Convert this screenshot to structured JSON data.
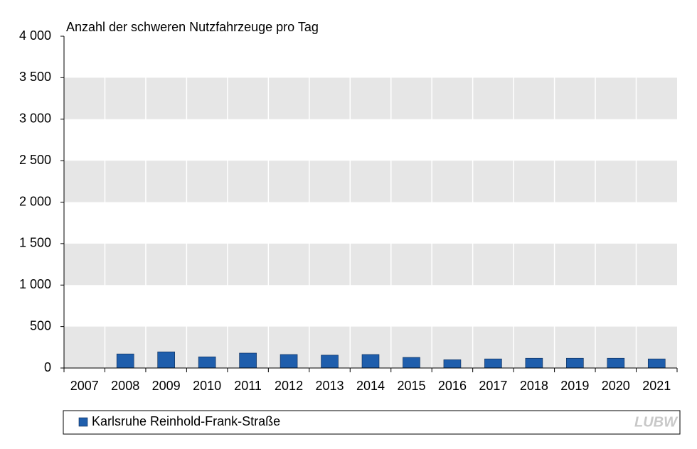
{
  "chart_data": {
    "type": "bar",
    "y_axis_label": "Anzahl  der schweren Nutzfahrzeuge  pro Tag",
    "categories": [
      "2007",
      "2008",
      "2009",
      "2010",
      "2011",
      "2012",
      "2013",
      "2014",
      "2015",
      "2016",
      "2017",
      "2018",
      "2019",
      "2020",
      "2021"
    ],
    "series": [
      {
        "name": "Karlsruhe Reinhold-Frank-Straße",
        "color": "#1f5eac",
        "values": [
          null,
          170,
          195,
          135,
          180,
          163,
          155,
          163,
          128,
          100,
          110,
          118,
          118,
          118,
          110
        ]
      }
    ],
    "ylim": [
      0,
      4000
    ],
    "yticks": [
      0,
      500,
      {
        "value": 1000,
        "label": "1 000"
      },
      {
        "value": 1500,
        "label": "1 500"
      },
      {
        "value": 2000,
        "label": "2 000"
      },
      {
        "value": 2500,
        "label": "2 500"
      },
      {
        "value": 3000,
        "label": "3 000"
      },
      {
        "value": 3500,
        "label": "3 500"
      },
      {
        "value": 4000,
        "label": "4 000"
      }
    ],
    "grid": true,
    "legend": "bottom",
    "logo": "LUBW"
  }
}
